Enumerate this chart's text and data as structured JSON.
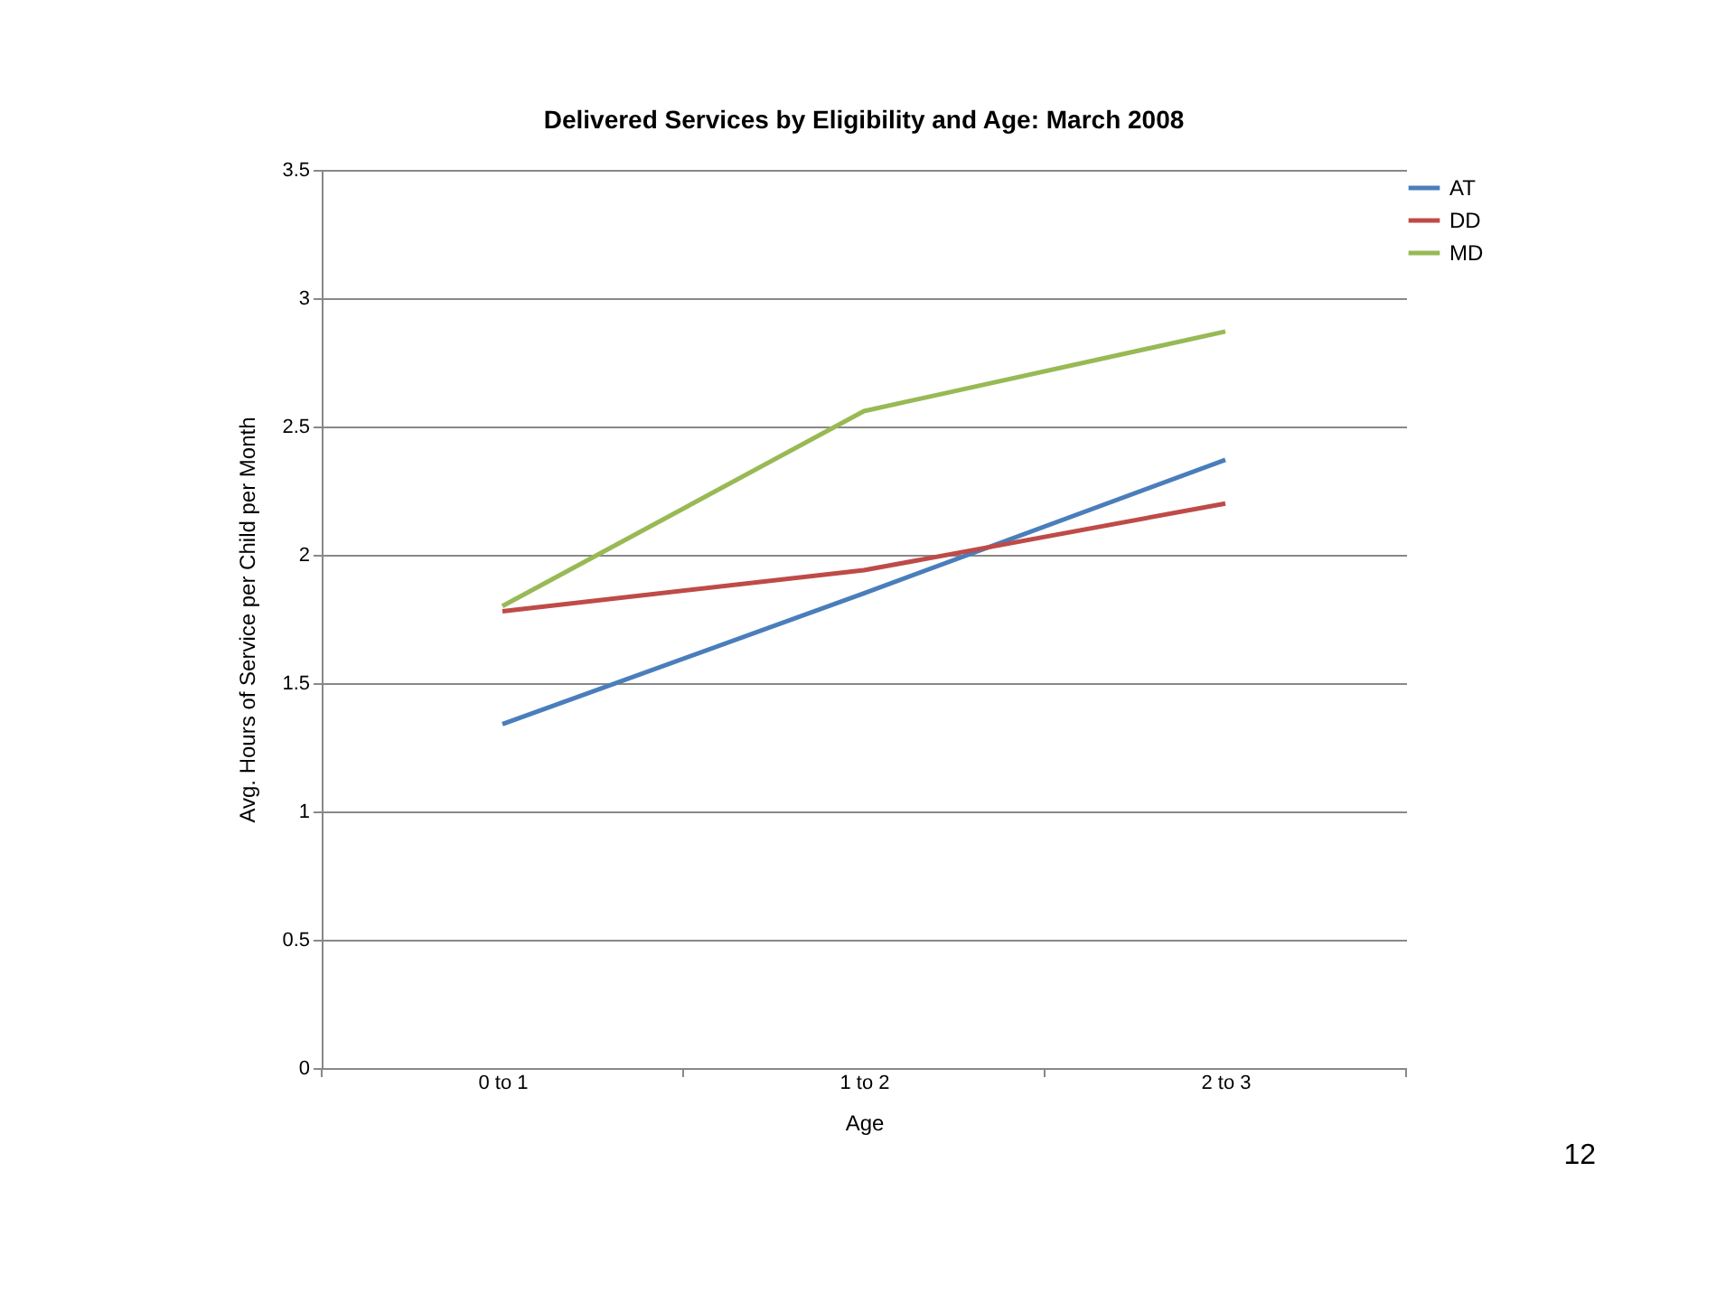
{
  "chart_data": {
    "type": "line",
    "title": "Delivered Services by Eligibility and Age:  March 2008",
    "xlabel": "Age",
    "ylabel": "Avg. Hours of Service per Child per Month",
    "categories": [
      "0 to 1",
      "1 to 2",
      "2 to 3"
    ],
    "series": [
      {
        "name": "AT",
        "color": "#4a7ebb",
        "values": [
          1.34,
          1.85,
          2.37
        ]
      },
      {
        "name": "DD",
        "color": "#be4b48",
        "values": [
          1.78,
          1.94,
          2.2
        ]
      },
      {
        "name": "MD",
        "color": "#98b954",
        "values": [
          1.8,
          2.56,
          2.87
        ]
      }
    ],
    "ylim": [
      0,
      3.5
    ],
    "yticks": [
      0,
      0.5,
      1,
      1.5,
      2,
      2.5,
      3,
      3.5
    ],
    "grid": "y",
    "legend": "right",
    "marker": "none",
    "line_style": "solid",
    "annotations": [
      "12"
    ]
  }
}
